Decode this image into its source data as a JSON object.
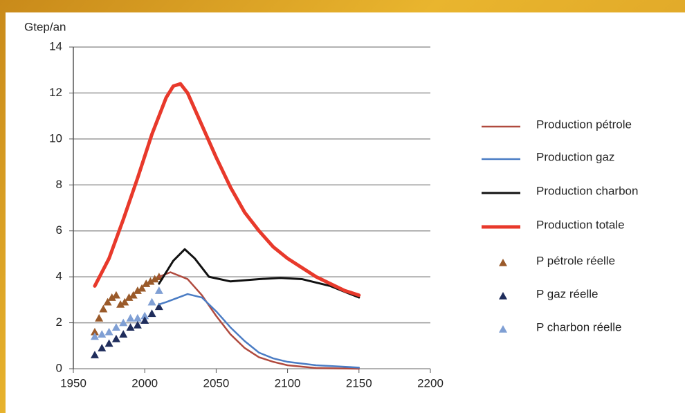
{
  "chart_data": {
    "type": "line",
    "y_label": "Gtep/an",
    "xlim": [
      1950,
      2200
    ],
    "xticks": [
      1950,
      2000,
      2050,
      2100,
      2150,
      2200
    ],
    "ylim": [
      0,
      14
    ],
    "yticks": [
      0,
      2,
      4,
      6,
      8,
      10,
      12,
      14
    ],
    "grid": true,
    "legend": "right",
    "series": [
      {
        "name": "Production pétrole",
        "type": "line",
        "color": "#b04a3e",
        "width": 2.5,
        "x": [
          2010,
          2018,
          2030,
          2040,
          2050,
          2060,
          2070,
          2080,
          2090,
          2100,
          2120,
          2150
        ],
        "values": [
          4.0,
          4.2,
          3.9,
          3.2,
          2.3,
          1.5,
          0.9,
          0.5,
          0.3,
          0.15,
          0.03,
          0
        ]
      },
      {
        "name": "Production gaz",
        "type": "line",
        "color": "#4a7cc4",
        "width": 2.5,
        "x": [
          2010,
          2015,
          2030,
          2040,
          2050,
          2060,
          2070,
          2080,
          2090,
          2100,
          2120,
          2150
        ],
        "values": [
          2.8,
          2.9,
          3.25,
          3.1,
          2.5,
          1.8,
          1.2,
          0.7,
          0.45,
          0.3,
          0.15,
          0.05
        ]
      },
      {
        "name": "Production charbon",
        "type": "line",
        "color": "#111111",
        "width": 3,
        "x": [
          2010,
          2020,
          2028,
          2035,
          2045,
          2060,
          2080,
          2095,
          2110,
          2130,
          2150
        ],
        "values": [
          3.7,
          4.7,
          5.2,
          4.8,
          4.0,
          3.8,
          3.9,
          3.95,
          3.9,
          3.6,
          3.1
        ]
      },
      {
        "name": "Production totale",
        "type": "line",
        "color": "#e8392b",
        "width": 5,
        "x": [
          1965,
          1975,
          1985,
          1995,
          2005,
          2015,
          2020,
          2025,
          2030,
          2040,
          2050,
          2060,
          2070,
          2080,
          2090,
          2100,
          2110,
          2120,
          2130,
          2140,
          2150
        ],
        "values": [
          3.6,
          4.8,
          6.5,
          8.3,
          10.2,
          11.8,
          12.3,
          12.4,
          12.0,
          10.6,
          9.2,
          7.9,
          6.8,
          6.0,
          5.3,
          4.8,
          4.4,
          4.0,
          3.7,
          3.4,
          3.2
        ]
      },
      {
        "name": "P pétrole réelle",
        "type": "scatter",
        "color": "#9a5a2a",
        "x": [
          1965,
          1968,
          1971,
          1974,
          1977,
          1980,
          1983,
          1986,
          1989,
          1992,
          1995,
          1998,
          2001,
          2004,
          2007,
          2010
        ],
        "values": [
          1.6,
          2.2,
          2.6,
          2.9,
          3.1,
          3.2,
          2.8,
          2.9,
          3.1,
          3.2,
          3.4,
          3.5,
          3.7,
          3.8,
          3.9,
          4.0
        ]
      },
      {
        "name": "P gaz réelle",
        "type": "scatter",
        "color": "#1f2d5c",
        "x": [
          1965,
          1970,
          1975,
          1980,
          1985,
          1990,
          1995,
          2000,
          2005,
          2010
        ],
        "values": [
          0.6,
          0.9,
          1.1,
          1.3,
          1.5,
          1.8,
          1.9,
          2.1,
          2.4,
          2.7
        ]
      },
      {
        "name": "P charbon réelle",
        "type": "scatter",
        "color": "#7f9fd4",
        "x": [
          1965,
          1970,
          1975,
          1980,
          1985,
          1990,
          1995,
          2000,
          2005,
          2010
        ],
        "values": [
          1.4,
          1.5,
          1.6,
          1.8,
          2.0,
          2.2,
          2.2,
          2.3,
          2.9,
          3.4
        ]
      }
    ]
  }
}
